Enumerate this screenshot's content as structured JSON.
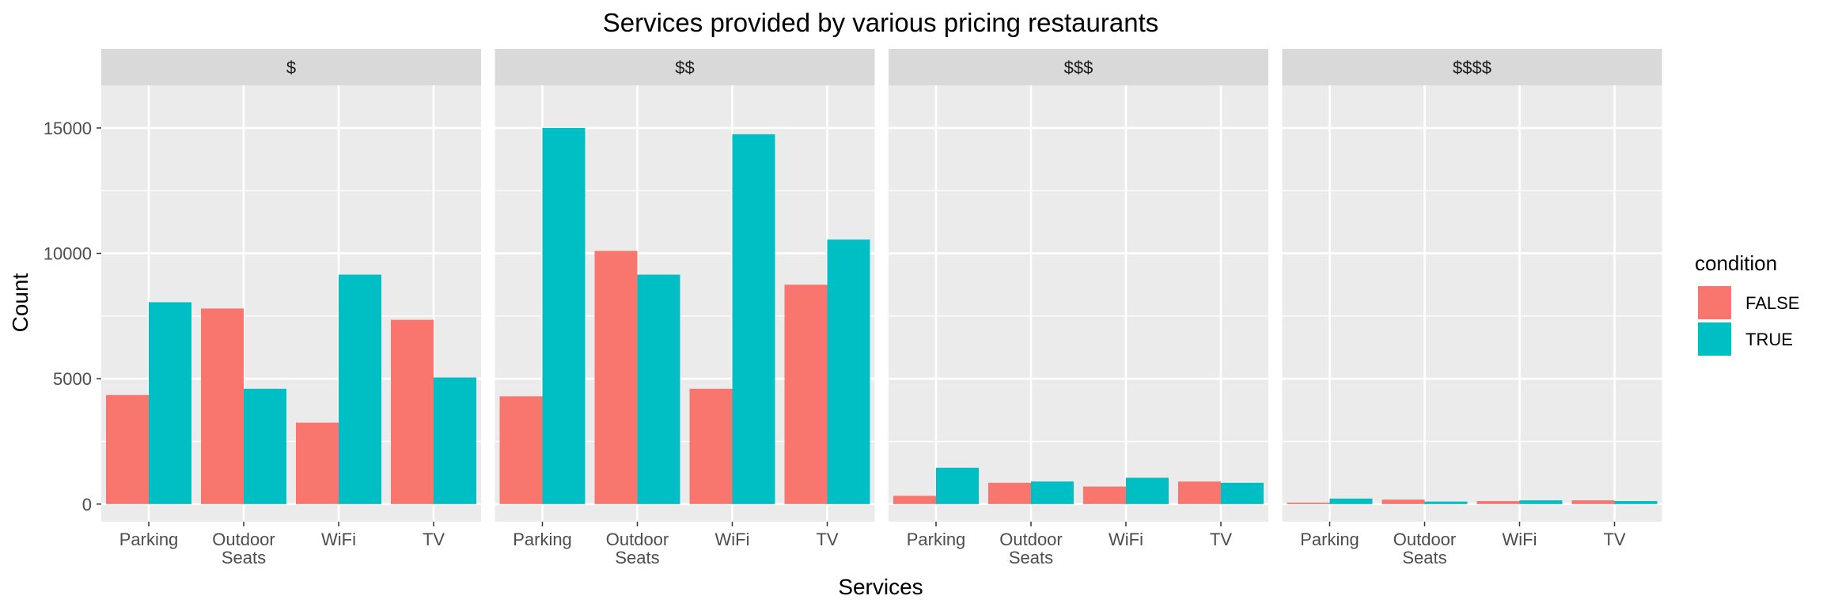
{
  "chart_data": {
    "type": "bar",
    "title": "Services provided by various pricing restaurants",
    "xlabel": "Services",
    "ylabel": "Count",
    "ylim": [
      -700,
      16700
    ],
    "yticks": [
      0,
      5000,
      10000,
      15000
    ],
    "ytick_labels": [
      "0",
      "5000",
      "10000",
      "15000"
    ],
    "grid": true,
    "categories": [
      [
        "Parking"
      ],
      [
        "Outdoor",
        "Seats"
      ],
      [
        "WiFi"
      ],
      [
        "TV"
      ]
    ],
    "legend": {
      "title": "condition",
      "placement": "right",
      "entries": [
        {
          "label": "FALSE",
          "color": "#F8766D"
        },
        {
          "label": "TRUE",
          "color": "#00BFC4"
        }
      ]
    },
    "colors": {
      "FALSE": "#F8766D",
      "TRUE": "#00BFC4",
      "panel_bg": "#EBEBEB",
      "strip_bg": "#D9D9D9",
      "grid": "#FFFFFF"
    },
    "facets": [
      {
        "label": "$",
        "series": [
          {
            "name": "FALSE",
            "values": [
              4350,
              7800,
              3250,
              7350
            ]
          },
          {
            "name": "TRUE",
            "values": [
              8050,
              4600,
              9150,
              5050
            ]
          }
        ]
      },
      {
        "label": "$$",
        "series": [
          {
            "name": "FALSE",
            "values": [
              4300,
              10100,
              4600,
              8750
            ]
          },
          {
            "name": "TRUE",
            "values": [
              15000,
              9150,
              14750,
              10550
            ]
          }
        ]
      },
      {
        "label": "$$$",
        "series": [
          {
            "name": "FALSE",
            "values": [
              330,
              850,
              700,
              900
            ]
          },
          {
            "name": "TRUE",
            "values": [
              1450,
              900,
              1050,
              850
            ]
          }
        ]
      },
      {
        "label": "$$$$",
        "series": [
          {
            "name": "FALSE",
            "values": [
              60,
              180,
              120,
              150
            ]
          },
          {
            "name": "TRUE",
            "values": [
              220,
              100,
              150,
              120
            ]
          }
        ]
      }
    ]
  }
}
